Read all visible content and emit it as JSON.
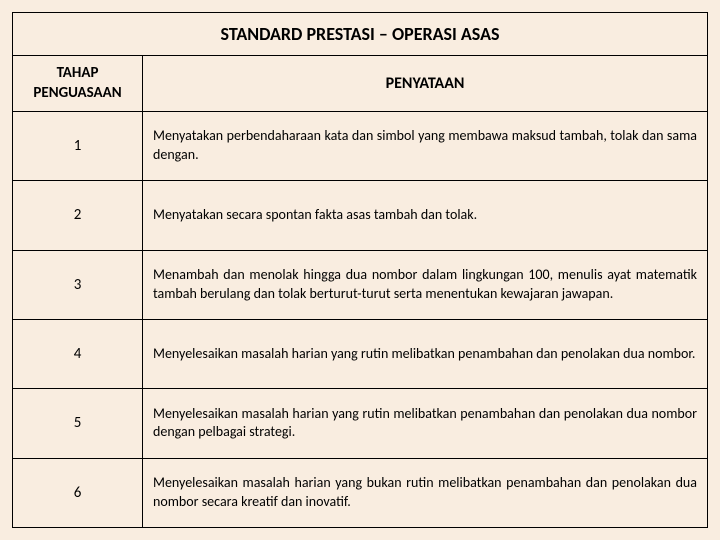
{
  "title": "STANDARD PRESTASI – OPERASI ASAS",
  "headers": {
    "col1": "TAHAP PENGUASAAN",
    "col2": "PENYATAAN"
  },
  "rows": [
    {
      "num": "1",
      "desc": "Menyatakan perbendaharaan kata dan simbol yang membawa maksud tambah, tolak dan sama dengan."
    },
    {
      "num": "2",
      "desc": "Menyatakan secara spontan fakta asas tambah dan tolak."
    },
    {
      "num": "3",
      "desc": "Menambah dan menolak hingga dua nombor dalam lingkungan 100, menulis ayat matematik tambah berulang dan tolak berturut-turut serta menentukan kewajaran jawapan."
    },
    {
      "num": "4",
      "desc": "Menyelesaikan masalah harian yang rutin melibatkan penambahan dan penolakan dua nombor."
    },
    {
      "num": "5",
      "desc": "Menyelesaikan masalah harian yang rutin melibatkan penambahan dan penolakan dua nombor dengan pelbagai strategi."
    },
    {
      "num": "6",
      "desc": "Menyelesaikan masalah harian yang bukan rutin melibatkan penambahan dan penolakan dua nombor secara kreatif dan inovatif."
    }
  ],
  "style": {
    "background_color": "#f9ede0",
    "border_color": "#000000",
    "title_fontsize": 18,
    "header_fontsize": 15,
    "body_fontsize": 14,
    "font_family": "Calibri"
  }
}
